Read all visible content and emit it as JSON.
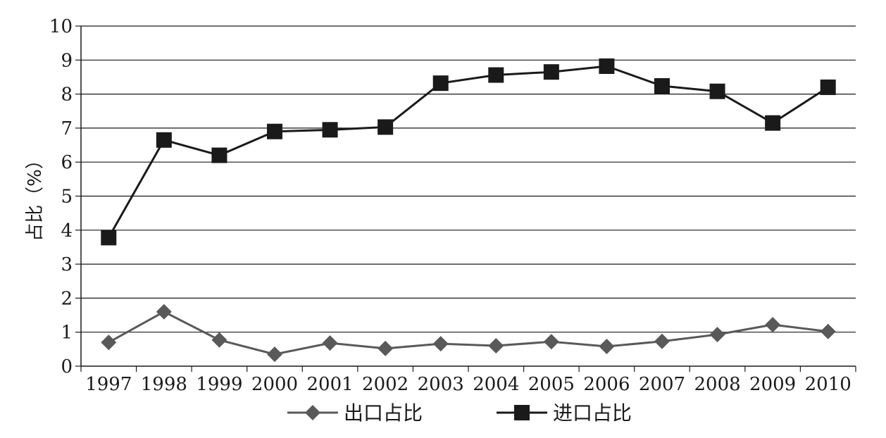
{
  "chart_data": {
    "type": "line",
    "title": "",
    "xlabel": "",
    "ylabel": "占比（%）",
    "categories": [
      "1997",
      "1998",
      "1999",
      "2000",
      "2001",
      "2002",
      "2003",
      "2004",
      "2005",
      "2006",
      "2007",
      "2008",
      "2009",
      "2010"
    ],
    "ylim": [
      0,
      10
    ],
    "yticks": [
      "0",
      "1",
      "2",
      "3",
      "4",
      "5",
      "6",
      "7",
      "8",
      "9",
      "10"
    ],
    "grid": true,
    "legend_position": "bottom",
    "series": [
      {
        "name": "出口占比",
        "marker": "diamond",
        "color": "#595959",
        "values": [
          0.7,
          1.6,
          0.77,
          0.35,
          0.68,
          0.52,
          0.66,
          0.6,
          0.72,
          0.58,
          0.73,
          0.93,
          1.22,
          1.02
        ]
      },
      {
        "name": "进口占比",
        "marker": "square",
        "color": "#1a1a1a",
        "values": [
          3.78,
          6.65,
          6.2,
          6.9,
          6.95,
          7.03,
          8.32,
          8.56,
          8.65,
          8.82,
          8.24,
          8.08,
          7.15,
          8.2
        ]
      }
    ]
  }
}
